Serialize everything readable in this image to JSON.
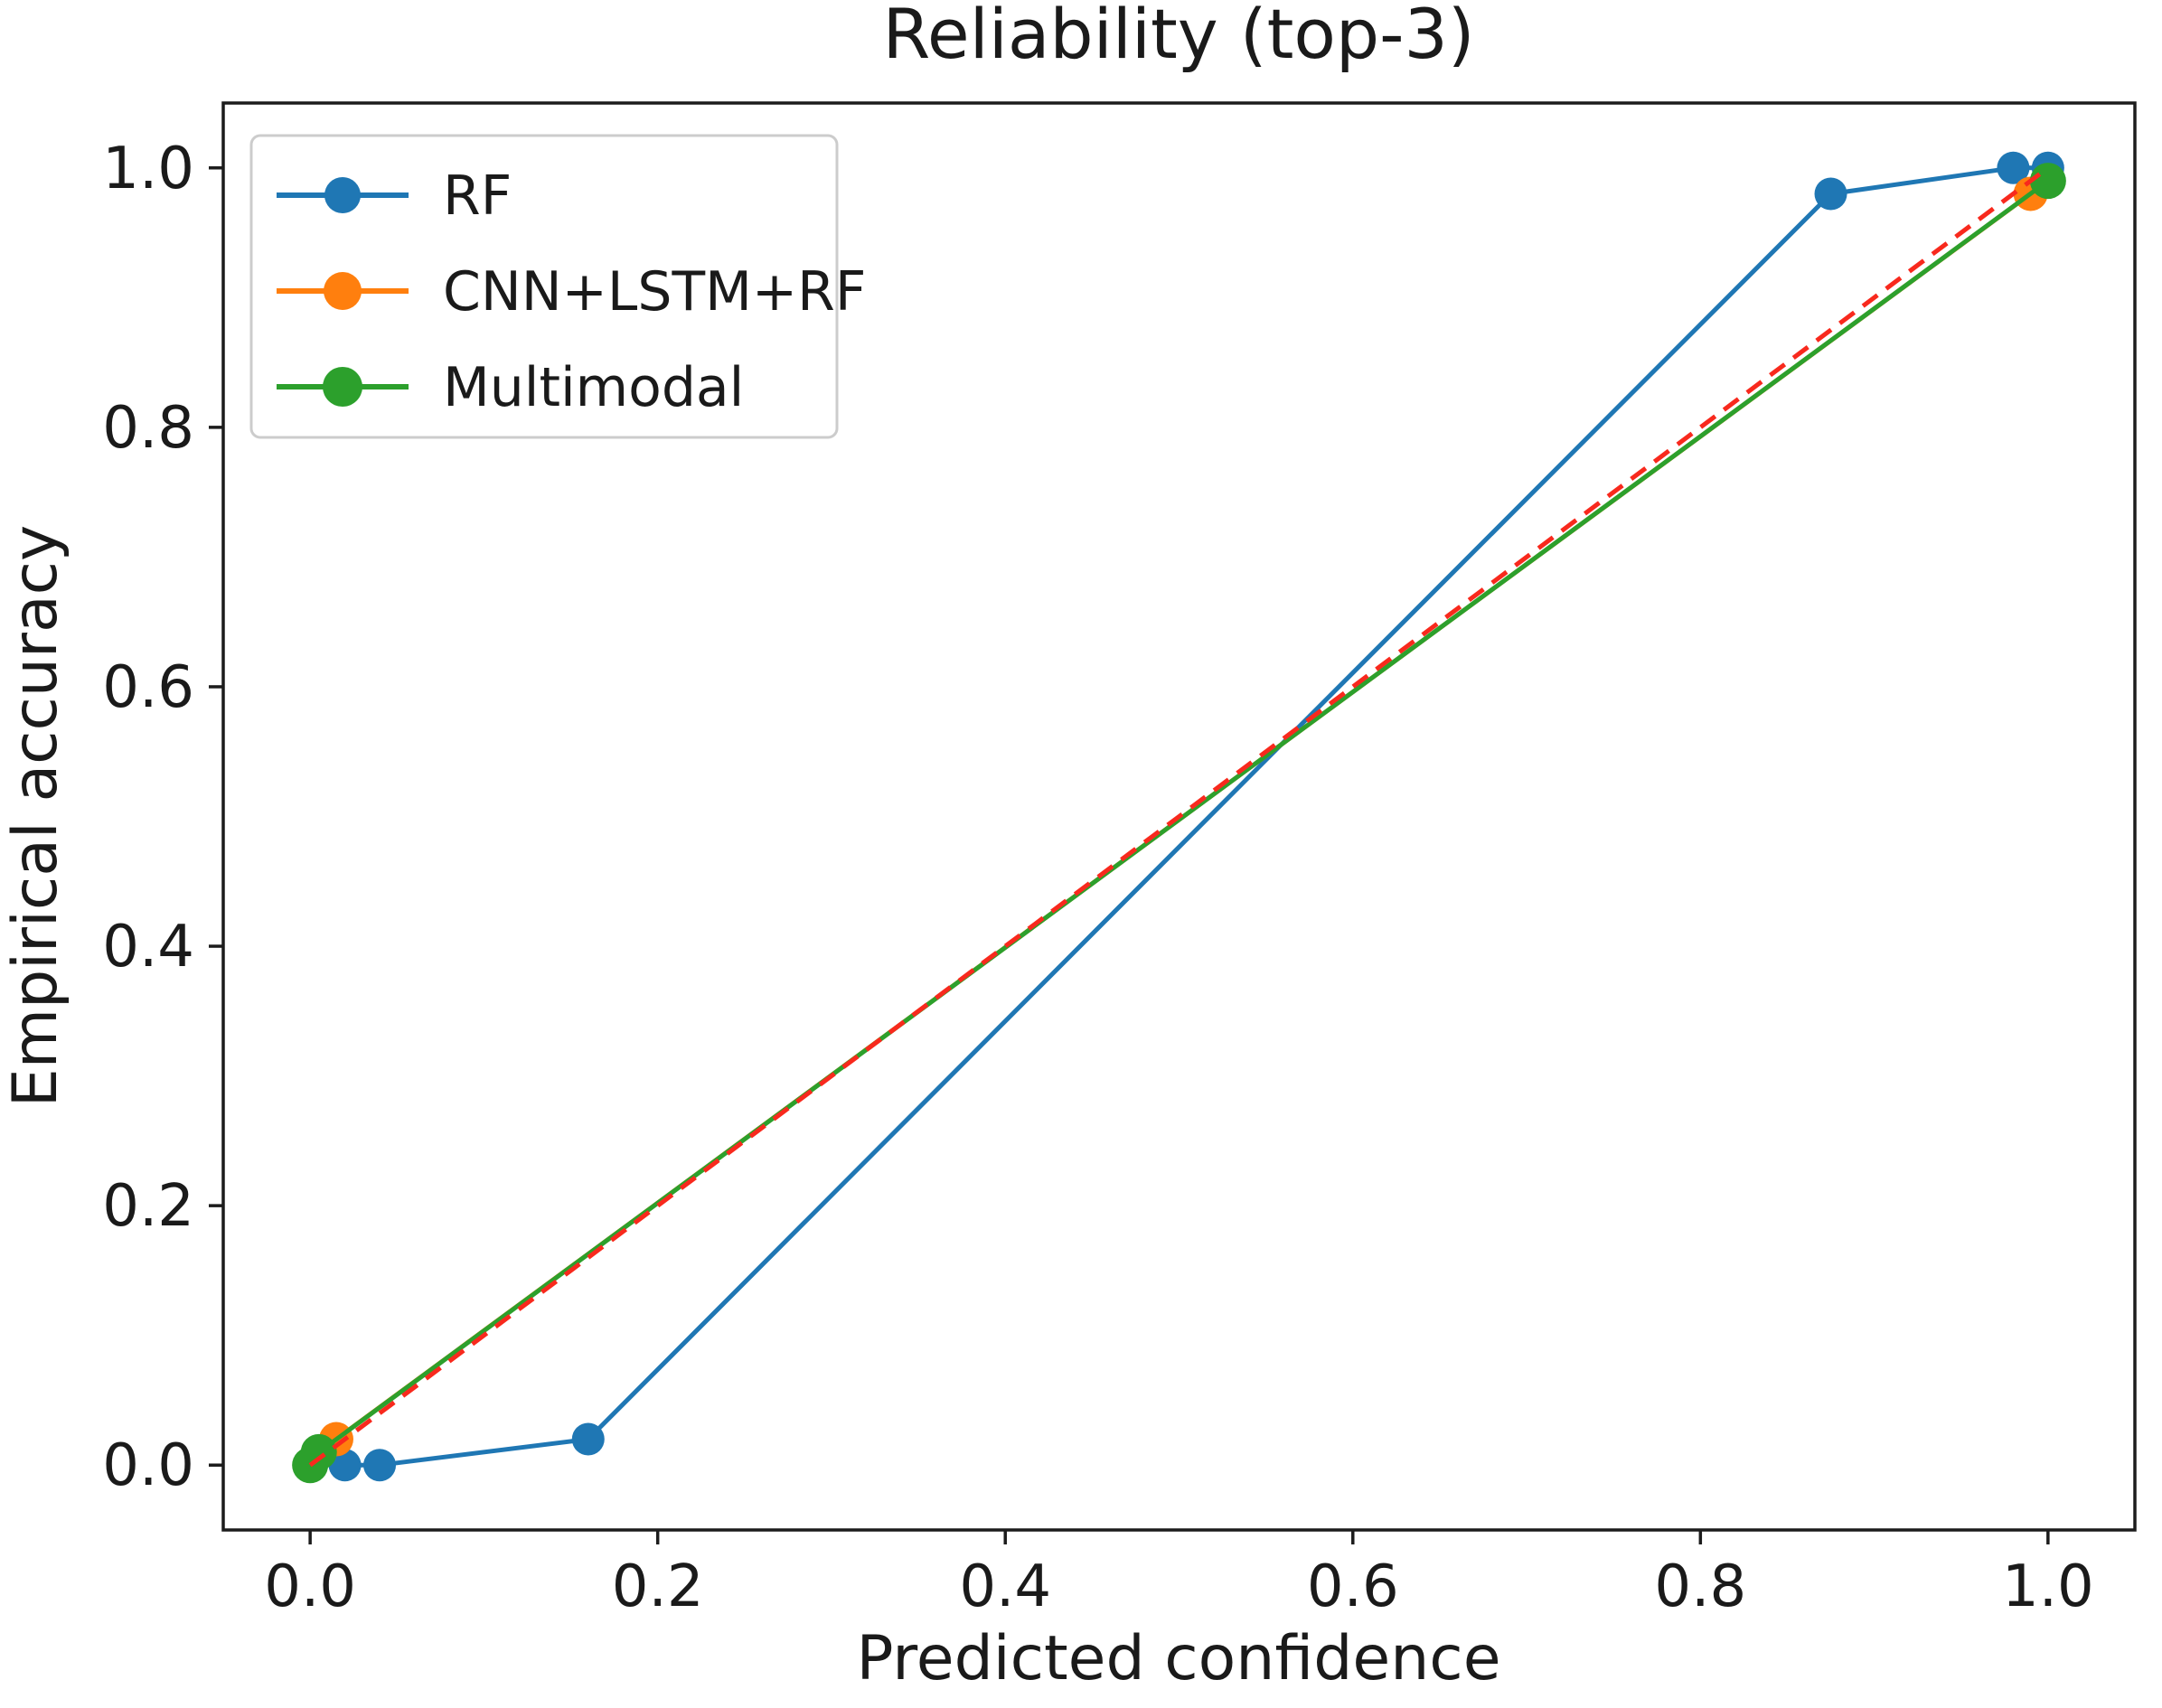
{
  "chart_data": {
    "type": "line",
    "title": "Reliability (top-3)",
    "xlabel": "Predicted confidence",
    "ylabel": "Empirical accuracy",
    "xlim": [
      -0.05,
      1.05
    ],
    "ylim": [
      -0.05,
      1.05
    ],
    "x_ticks": [
      0.0,
      0.2,
      0.4,
      0.6,
      0.8,
      1.0
    ],
    "y_ticks": [
      0.0,
      0.2,
      0.4,
      0.6,
      0.8,
      1.0
    ],
    "x_tick_labels": [
      "0.0",
      "0.2",
      "0.4",
      "0.6",
      "0.8",
      "1.0"
    ],
    "y_tick_labels": [
      "0.0",
      "0.2",
      "0.4",
      "0.6",
      "0.8",
      "1.0"
    ],
    "grid": false,
    "legend_position": "upper-left",
    "axis_color": "#1c1c1c",
    "background": "#ffffff",
    "series": [
      {
        "name": "RF",
        "color": "#1f77b4",
        "marker": "circle",
        "marker_radius": 18,
        "line_width": 5,
        "points": [
          [
            0.02,
            0.0
          ],
          [
            0.04,
            0.0
          ],
          [
            0.16,
            0.02
          ],
          [
            0.875,
            0.98
          ],
          [
            0.98,
            1.0
          ],
          [
            1.0,
            1.0
          ]
        ]
      },
      {
        "name": "CNN+LSTM+RF",
        "color": "#ff7f0e",
        "marker": "circle",
        "marker_radius": 19,
        "line_width": 5,
        "points": [
          [
            0.0,
            0.0
          ],
          [
            0.015,
            0.02
          ],
          [
            0.99,
            0.98
          ]
        ]
      },
      {
        "name": "Multimodal",
        "color": "#2ca02c",
        "marker": "circle",
        "marker_radius": 20,
        "line_width": 5,
        "points": [
          [
            0.0,
            0.0
          ],
          [
            0.005,
            0.01
          ],
          [
            1.0,
            0.99
          ]
        ]
      }
    ],
    "reference_line": {
      "style": "dashed",
      "color": "#f8291d",
      "dash": [
        20,
        12
      ],
      "line_width": 5,
      "from": [
        0.0,
        0.0
      ],
      "to": [
        1.0,
        1.0
      ]
    }
  }
}
